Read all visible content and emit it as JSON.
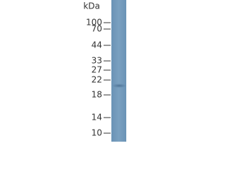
{
  "blot": {
    "unit_label": "kDa",
    "markers": [
      "100",
      "70",
      "44",
      "33",
      "27",
      "22",
      "18",
      "14",
      "10"
    ]
  }
}
